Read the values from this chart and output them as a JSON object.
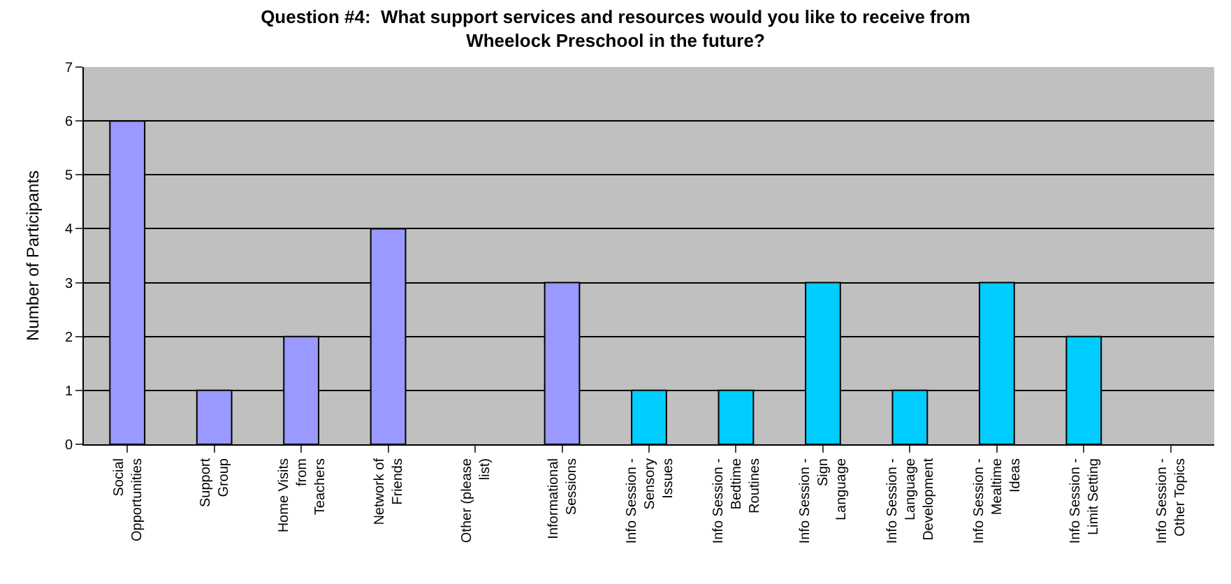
{
  "chart_data": {
    "type": "bar",
    "title": "Question #4:  What support services and resources would you like to receive from\nWheelock Preschool in the future?",
    "ylabel": "Number of Participants",
    "categories": [
      "Social\nOpportunities",
      "Support\nGroup",
      "Home Visits\nfrom\nTeachers",
      "Network of\nFriends",
      "Other (please\nlist)",
      "Informational\nSessions",
      "Info Session -\nSensory\nIssues",
      "Info Session -\nBedtime\nRoutines",
      "Info Session -\nSign\nLanguage",
      "Info Session -\nLanguage\nDevelopment",
      "Info Session -\nMealtime\nIdeas",
      "Info Session -\nLimit Setting",
      "Info Session -\nOther Topics"
    ],
    "values": [
      6,
      1,
      2,
      4,
      0,
      3,
      1,
      1,
      3,
      1,
      3,
      2,
      0
    ],
    "colors": [
      "#9999ff",
      "#9999ff",
      "#9999ff",
      "#9999ff",
      "#9999ff",
      "#9999ff",
      "#00ccff",
      "#00ccff",
      "#00ccff",
      "#00ccff",
      "#00ccff",
      "#00ccff",
      "#00ccff"
    ],
    "ylim": [
      0,
      7
    ],
    "yticks": [
      0,
      1,
      2,
      3,
      4,
      5,
      6,
      7
    ],
    "grid": "y"
  }
}
